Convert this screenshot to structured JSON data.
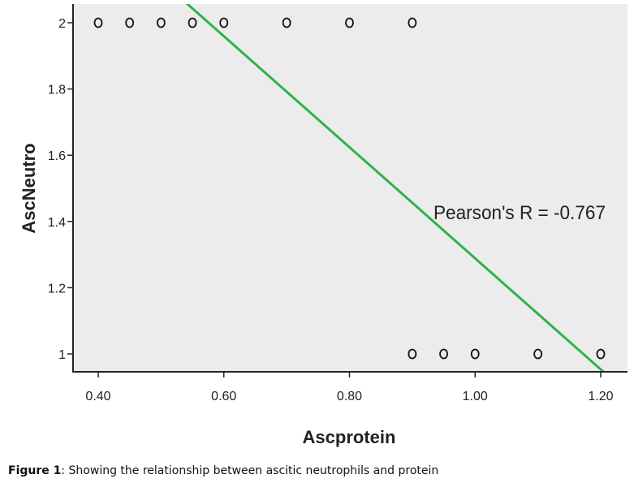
{
  "caption": {
    "label": "Figure 1",
    "text": ": Showing the relationship between ascitic neutrophils and protein"
  },
  "chart_data": {
    "type": "scatter",
    "xlabel": "Ascprotein",
    "ylabel": "AscNeutro",
    "xlim": [
      0.35,
      1.25
    ],
    "ylim": [
      0.95,
      2.05
    ],
    "x_ticks": [
      0.4,
      0.6,
      0.8,
      1.0,
      1.2
    ],
    "x_tick_labels": [
      "0.40",
      "0.60",
      "0.80",
      "1.00",
      "1.20"
    ],
    "y_ticks": [
      1,
      1.2,
      1.4,
      1.6,
      1.8,
      2
    ],
    "y_tick_labels": [
      "1",
      "1.2",
      "1.4",
      "1.6",
      "1.8",
      "2"
    ],
    "grid": false,
    "plot_background": "#ececec",
    "marker_color": "#111111",
    "points": [
      {
        "x": 0.4,
        "y": 2
      },
      {
        "x": 0.45,
        "y": 2
      },
      {
        "x": 0.5,
        "y": 2
      },
      {
        "x": 0.55,
        "y": 2
      },
      {
        "x": 0.6,
        "y": 2
      },
      {
        "x": 0.7,
        "y": 2
      },
      {
        "x": 0.8,
        "y": 2
      },
      {
        "x": 0.9,
        "y": 2
      },
      {
        "x": 0.9,
        "y": 1
      },
      {
        "x": 0.95,
        "y": 1
      },
      {
        "x": 1.0,
        "y": 1
      },
      {
        "x": 1.1,
        "y": 1
      },
      {
        "x": 1.2,
        "y": 1
      }
    ],
    "fit_line": {
      "color": "#2db34a",
      "from": {
        "x": 0.54,
        "y": 2.06
      },
      "to": {
        "x": 1.205,
        "y": 0.945
      }
    },
    "annotation": "Pearson's R = -0.767"
  }
}
